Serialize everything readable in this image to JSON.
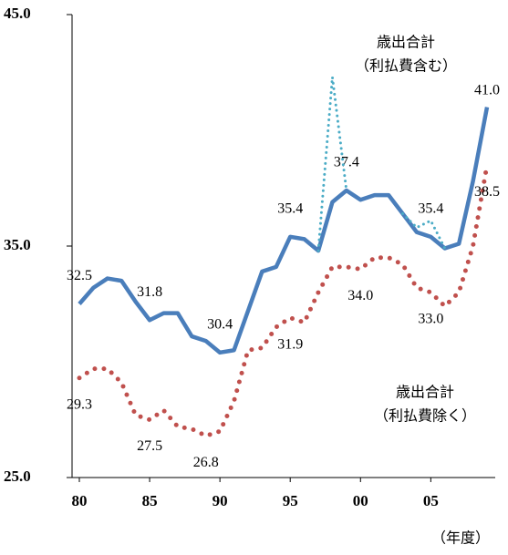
{
  "chart_data": {
    "type": "line",
    "x": [
      1980,
      1981,
      1982,
      1983,
      1984,
      1985,
      1986,
      1987,
      1988,
      1989,
      1990,
      1991,
      1992,
      1993,
      1994,
      1995,
      1996,
      1997,
      1998,
      1999,
      2000,
      2001,
      2002,
      2003,
      2004,
      2005,
      2006,
      2007,
      2008,
      2009
    ],
    "series": [
      {
        "name": [
          "歳出合計",
          "（利払費含む）"
        ],
        "color": "#4a7ebb",
        "style": "solid",
        "values": [
          32.5,
          33.2,
          33.6,
          33.5,
          32.6,
          31.8,
          32.1,
          32.1,
          31.1,
          30.9,
          30.4,
          30.5,
          32.2,
          33.9,
          34.1,
          35.4,
          35.3,
          34.8,
          36.9,
          37.4,
          37.0,
          37.2,
          37.2,
          36.4,
          35.6,
          35.4,
          34.9,
          35.1,
          37.8,
          41.0
        ],
        "value_labels": [
          "32.5",
          null,
          null,
          null,
          null,
          "31.8",
          null,
          null,
          null,
          null,
          "30.4",
          null,
          null,
          null,
          null,
          "35.4",
          null,
          null,
          null,
          "37.4",
          null,
          null,
          null,
          null,
          null,
          "35.4",
          null,
          null,
          null,
          "41.0"
        ]
      },
      {
        "name": [
          "歳出合計",
          "（利払費除く）"
        ],
        "color": "#c0504d",
        "style": "dotted",
        "values": [
          29.3,
          29.7,
          29.7,
          29.1,
          27.7,
          27.5,
          27.9,
          27.2,
          27.1,
          26.8,
          27.0,
          28.3,
          30.5,
          30.6,
          31.5,
          31.9,
          31.7,
          33.0,
          34.1,
          34.1,
          34.0,
          34.5,
          34.5,
          34.2,
          33.2,
          33.0,
          32.4,
          33.0,
          35.0,
          38.5
        ],
        "value_labels": [
          "29.3",
          null,
          null,
          null,
          null,
          "27.5",
          null,
          null,
          null,
          "26.8",
          null,
          null,
          null,
          null,
          null,
          "31.9",
          null,
          null,
          null,
          null,
          "34.0",
          null,
          null,
          null,
          null,
          "33.0",
          null,
          null,
          null,
          "38.5"
        ]
      },
      {
        "color": "#4bacc6",
        "style": "thin-dotted",
        "values": [
          null,
          null,
          null,
          null,
          null,
          null,
          null,
          null,
          null,
          null,
          null,
          null,
          null,
          null,
          null,
          null,
          null,
          34.8,
          42.3,
          37.4,
          null,
          null,
          null,
          36.4,
          35.8,
          36.1,
          34.9,
          null,
          null,
          null
        ]
      }
    ],
    "xlim": [
      1980,
      2009
    ],
    "xticks": [
      {
        "value": 1980,
        "label": "80"
      },
      {
        "value": 1985,
        "label": "85"
      },
      {
        "value": 1990,
        "label": "90"
      },
      {
        "value": 1995,
        "label": "95"
      },
      {
        "value": 2000,
        "label": "00"
      },
      {
        "value": 2005,
        "label": "05"
      }
    ],
    "ylim": [
      25,
      45
    ],
    "yticks": [
      {
        "value": 25,
        "label": "25.0"
      },
      {
        "value": 35,
        "label": "35.0"
      },
      {
        "value": 45,
        "label": "45.0"
      }
    ],
    "x_unit": "（年度）",
    "grid": false
  }
}
